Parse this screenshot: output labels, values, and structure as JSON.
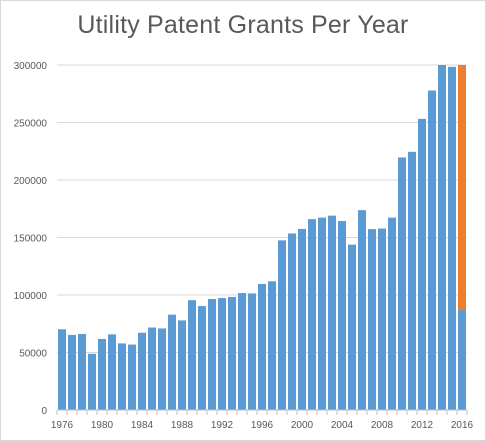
{
  "chart_data": {
    "type": "bar",
    "title": "Utility Patent Grants Per Year",
    "xlabel": "",
    "ylabel": "",
    "categories": [
      "1976",
      "1977",
      "1978",
      "1979",
      "1980",
      "1981",
      "1982",
      "1983",
      "1984",
      "1985",
      "1986",
      "1987",
      "1988",
      "1989",
      "1990",
      "1991",
      "1992",
      "1993",
      "1994",
      "1995",
      "1996",
      "1997",
      "1998",
      "1999",
      "2000",
      "2001",
      "2002",
      "2003",
      "2004",
      "2005",
      "2006",
      "2007",
      "2008",
      "2009",
      "2010",
      "2011",
      "2012",
      "2013",
      "2014",
      "2015",
      "2016"
    ],
    "x_tick_labels": [
      "1976",
      "1980",
      "1984",
      "1988",
      "1992",
      "1996",
      "2000",
      "2004",
      "2008",
      "2012",
      "2016"
    ],
    "y_tick_values": [
      0,
      50000,
      100000,
      150000,
      200000,
      250000,
      300000
    ],
    "y_tick_labels": [
      "0",
      "50000",
      "100000",
      "150000",
      "200000",
      "250000",
      "300000"
    ],
    "ylim": [
      0,
      300000
    ],
    "grid": true,
    "legend": "none",
    "series": [
      {
        "color": "#5b9bd5",
        "values": [
          70200,
          65300,
          66100,
          48900,
          61800,
          65800,
          57900,
          56900,
          67200,
          71700,
          70900,
          82900,
          77900,
          95500,
          90400,
          96500,
          97400,
          98300,
          101700,
          101400,
          109600,
          111900,
          147500,
          153500,
          157500,
          166000,
          167300,
          169000,
          164300,
          143800,
          173800,
          157300,
          157800,
          167300,
          219600,
          224500,
          253200,
          277800,
          300700,
          298400,
          87000
        ]
      },
      {
        "color": "#ed7d31",
        "values": [
          0,
          0,
          0,
          0,
          0,
          0,
          0,
          0,
          0,
          0,
          0,
          0,
          0,
          0,
          0,
          0,
          0,
          0,
          0,
          0,
          0,
          0,
          0,
          0,
          0,
          0,
          0,
          0,
          0,
          0,
          0,
          0,
          0,
          0,
          0,
          0,
          0,
          0,
          0,
          0,
          213000
        ]
      }
    ]
  }
}
